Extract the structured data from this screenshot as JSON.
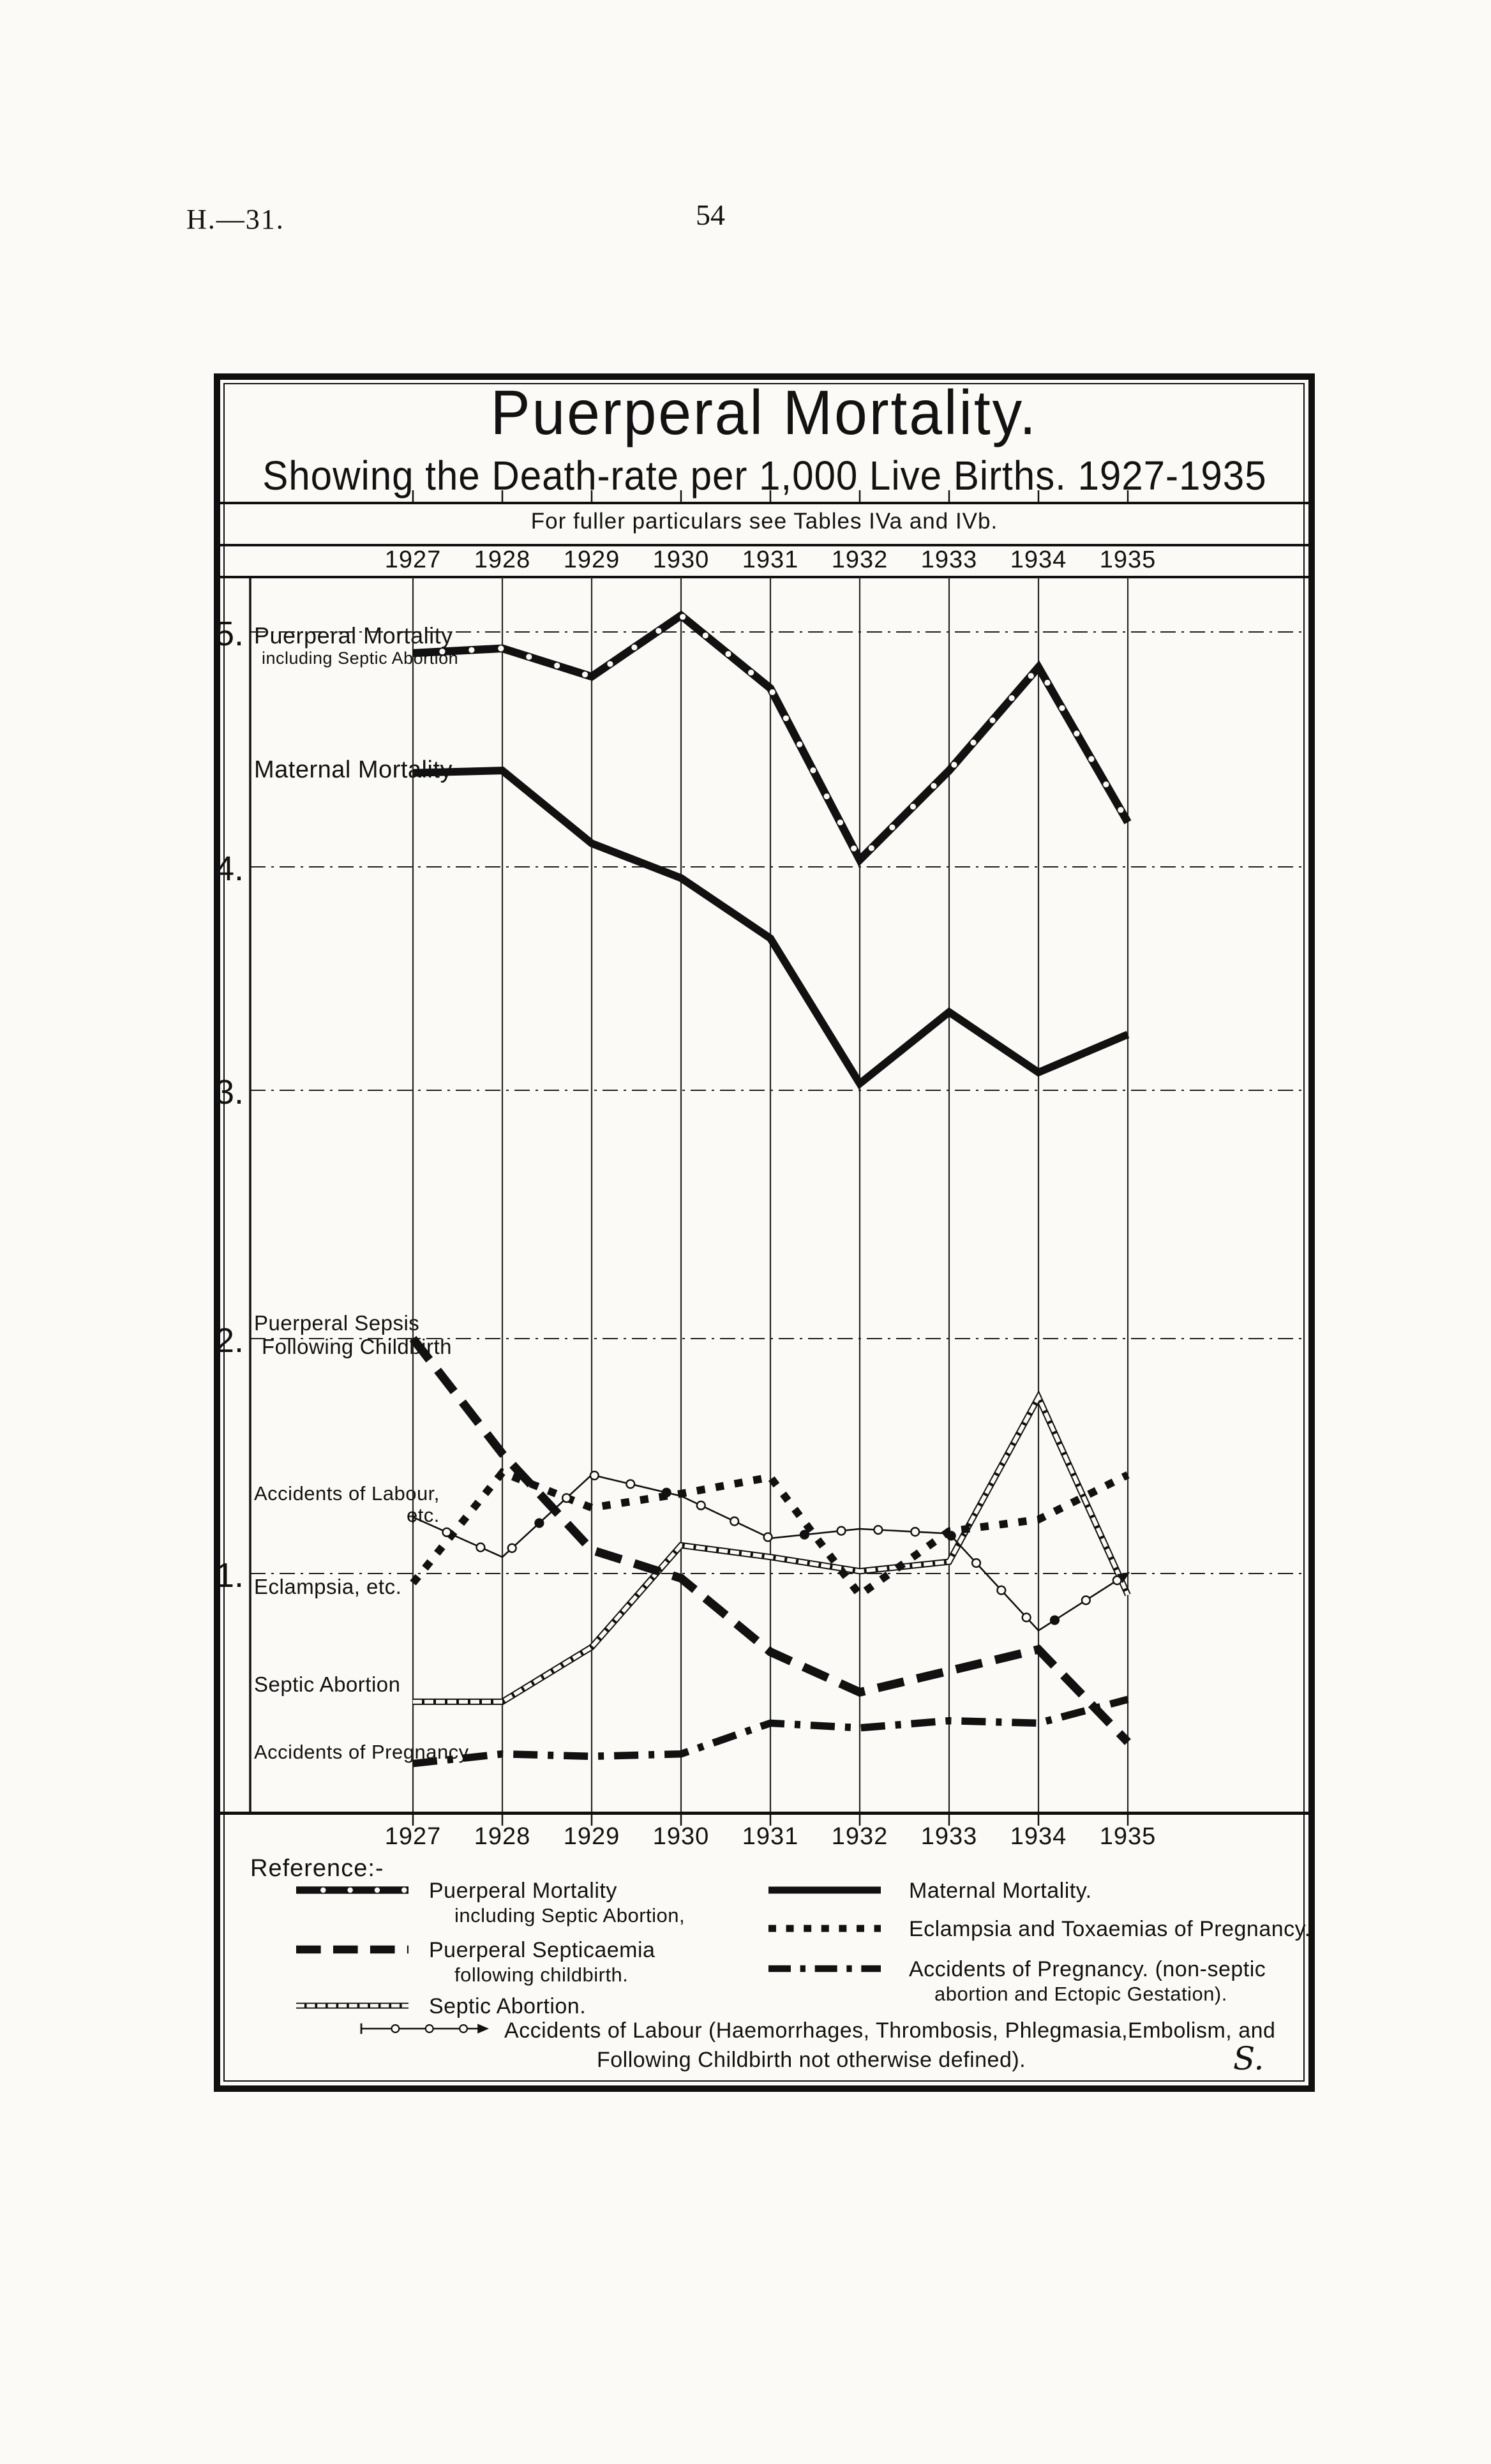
{
  "page": {
    "header_left": "H.—31.",
    "page_number": "54"
  },
  "chart": {
    "title": "Puerperal Mortality.",
    "subtitle": "Showing the Death-rate per 1,000 Live Births. 1927-1935",
    "note": "For fuller particulars see Tables IVa and IVb.",
    "reference_heading": "Reference:-",
    "signature": "S."
  },
  "chart_data": {
    "type": "line",
    "title": "Puerperal Mortality.",
    "subtitle": "Showing the Death-rate per 1,000 Live Births. 1927-1935",
    "x": [
      1927,
      1928,
      1929,
      1930,
      1931,
      1932,
      1933,
      1934,
      1935
    ],
    "x_axis": {
      "position": "top and bottom",
      "tick_labels": [
        "1927",
        "1928",
        "1929",
        "1930",
        "1931",
        "1932",
        "1933",
        "1934",
        "1935"
      ]
    },
    "ylim": [
      0,
      5.3
    ],
    "yticks": [
      {
        "value": 5,
        "label": "5."
      },
      {
        "value": 4,
        "label": "4."
      },
      {
        "value": 3,
        "label": "3."
      },
      {
        "value": 2,
        "label": "2."
      },
      {
        "value": 1,
        "label": "1."
      }
    ],
    "grid": "both",
    "series": [
      {
        "id": "pm",
        "name": "Puerperal Mortality including Septic Abortion",
        "style": "thick-white-dots",
        "values": [
          4.91,
          4.93,
          4.81,
          5.07,
          4.76,
          4.03,
          4.41,
          4.85,
          4.19
        ],
        "label": {
          "lines": [
            "Puerperal Mortality",
            "including Septic Abortion"
          ],
          "at": 4.93
        }
      },
      {
        "id": "mm",
        "name": "Maternal Mortality",
        "style": "thick-solid",
        "values": [
          4.4,
          4.41,
          4.1,
          3.95,
          3.68,
          3.03,
          3.35,
          3.08,
          3.25
        ],
        "label": {
          "lines": [
            "Maternal Mortality"
          ],
          "at": 4.4
        }
      },
      {
        "id": "sepsis",
        "name": "Puerperal Septicaemia following childbirth",
        "style": "heavy-dash",
        "values": [
          2.0,
          1.51,
          1.1,
          0.98,
          0.67,
          0.5,
          0.59,
          0.68,
          0.29
        ],
        "label": {
          "lines": [
            "Puerperal Sepsis",
            "Following Childbirth"
          ],
          "at": 2.0
        }
      },
      {
        "id": "labour",
        "name": "Accidents of Labour etc.",
        "style": "thin-circles",
        "values": [
          1.24,
          1.07,
          1.42,
          1.33,
          1.15,
          1.19,
          1.17,
          0.76,
          1.0
        ],
        "label": {
          "lines": [
            "Accidents of Labour,",
            "etc."
          ],
          "at": 1.28,
          "align_last": "right"
        }
      },
      {
        "id": "eclampsia",
        "name": "Eclampsia and Toxaemias of Pregnancy",
        "style": "square-dots",
        "values": [
          0.96,
          1.43,
          1.28,
          1.34,
          1.41,
          0.91,
          1.18,
          1.23,
          1.42
        ],
        "label": {
          "lines": [
            "Eclampsia, etc."
          ],
          "at": 0.93
        }
      },
      {
        "id": "septic_abortion",
        "name": "Septic Abortion",
        "style": "railroad",
        "values": [
          0.46,
          0.46,
          0.69,
          1.12,
          1.07,
          1.01,
          1.05,
          1.75,
          0.91
        ],
        "label": {
          "lines": [
            "Septic Abortion"
          ],
          "at": 0.52
        }
      },
      {
        "id": "pregnancy",
        "name": "Accidents of Pregnancy (non-septic abortion and Ectopic Gestation)",
        "style": "dash-dot",
        "values": [
          0.2,
          0.24,
          0.23,
          0.24,
          0.37,
          0.35,
          0.38,
          0.37,
          0.47
        ],
        "label": {
          "lines": [
            "Accidents of Pregnancy"
          ],
          "at": 0.235
        }
      }
    ],
    "legend": {
      "position": "bottom",
      "columns": [
        [
          {
            "style": "thick-white-dots",
            "lines": [
              "Puerperal Mortality",
              "including Septic Abortion,"
            ]
          },
          {
            "style": "heavy-dash",
            "lines": [
              "Puerperal Septicaemia",
              "following childbirth."
            ]
          },
          {
            "style": "railroad",
            "lines": [
              "Septic Abortion."
            ]
          }
        ],
        [
          {
            "style": "thick-solid",
            "lines": [
              "Maternal Mortality."
            ]
          },
          {
            "style": "square-dots",
            "lines": [
              "Eclampsia and Toxaemias of Pregnancy."
            ]
          },
          {
            "style": "dash-dot",
            "lines": [
              "Accidents of Pregnancy. (non-septic",
              "abortion and Ectopic Gestation)."
            ]
          }
        ]
      ],
      "full_width": {
        "style": "thin-circles",
        "lines": [
          "Accidents of Labour (Haemorrhages, Thrombosis, Phlegmasia,Embolism, and",
          "Following Childbirth not otherwise defined)."
        ]
      }
    }
  },
  "colors": {
    "ink": "#111111",
    "paper": "#fbfaf6"
  }
}
